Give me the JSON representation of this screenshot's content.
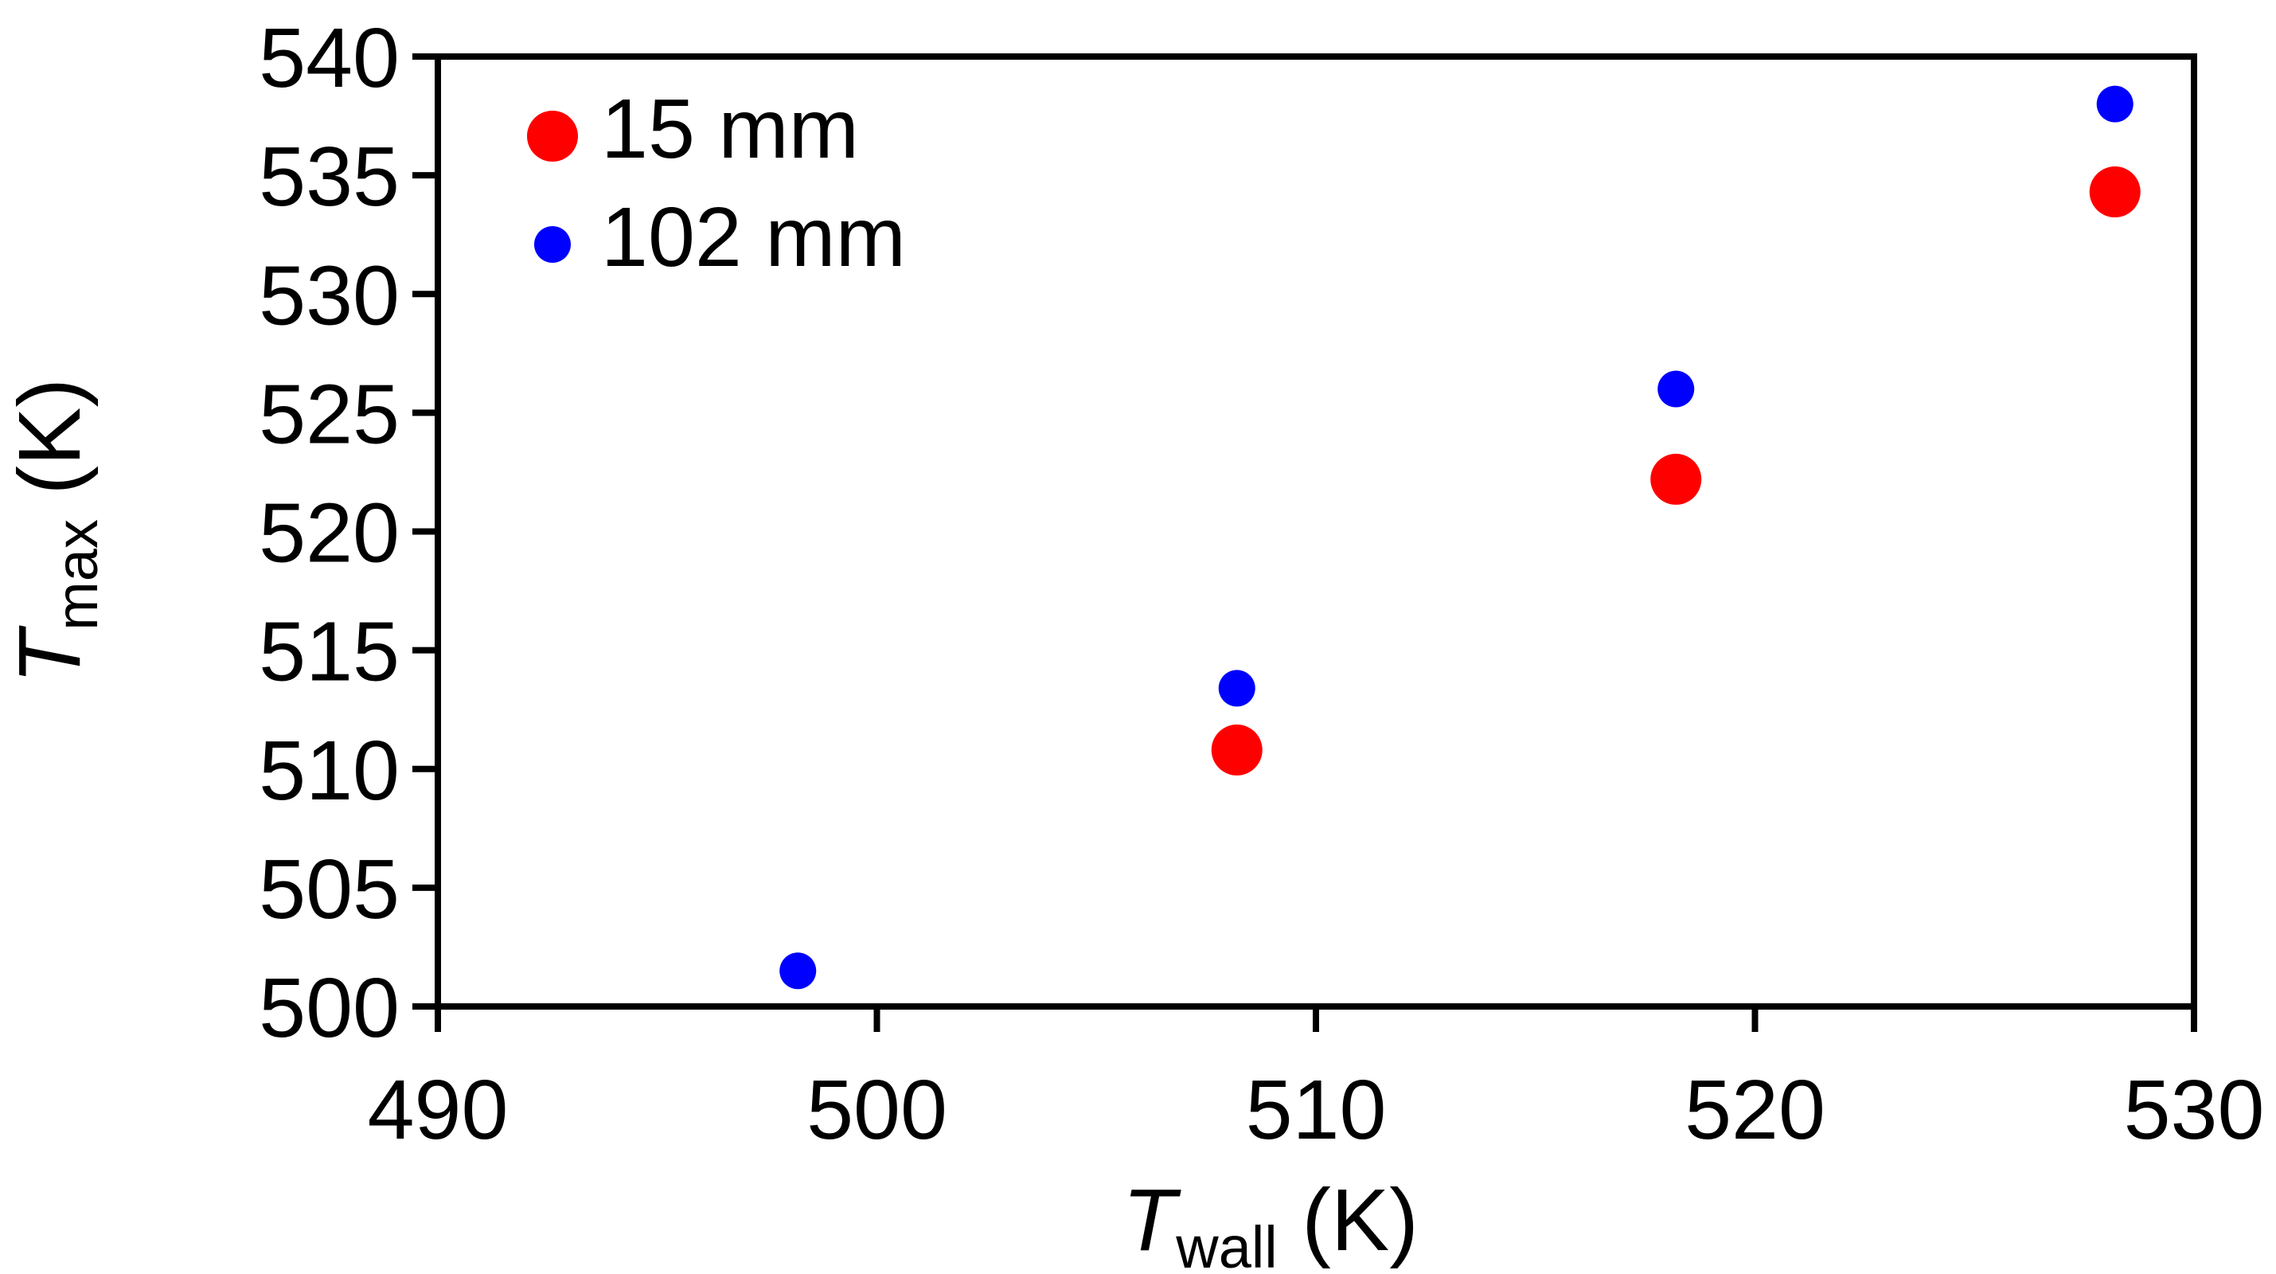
{
  "chart_data": {
    "type": "scatter",
    "title": "",
    "xlabel": {
      "main": "T",
      "sub": "wall",
      "unit": " (K)"
    },
    "ylabel": {
      "main": "T",
      "sub": "max",
      "unit": " (K)"
    },
    "xlim": [
      490,
      530
    ],
    "ylim": [
      500,
      540
    ],
    "xticks": [
      490,
      500,
      510,
      520,
      530
    ],
    "yticks": [
      500,
      505,
      510,
      515,
      520,
      525,
      530,
      535,
      540
    ],
    "grid": false,
    "legend_position": "top-left",
    "series": [
      {
        "name": "15 mm",
        "color": "#ff0000",
        "marker": "large-circle",
        "x": [
          508.2,
          518.2,
          528.2
        ],
        "y": [
          510.8,
          522.2,
          534.3
        ]
      },
      {
        "name": "102 mm",
        "color": "#0000ff",
        "marker": "small-circle",
        "x": [
          498.2,
          508.2,
          518.2,
          528.2
        ],
        "y": [
          501.5,
          513.4,
          526.0,
          538.0
        ]
      }
    ]
  }
}
